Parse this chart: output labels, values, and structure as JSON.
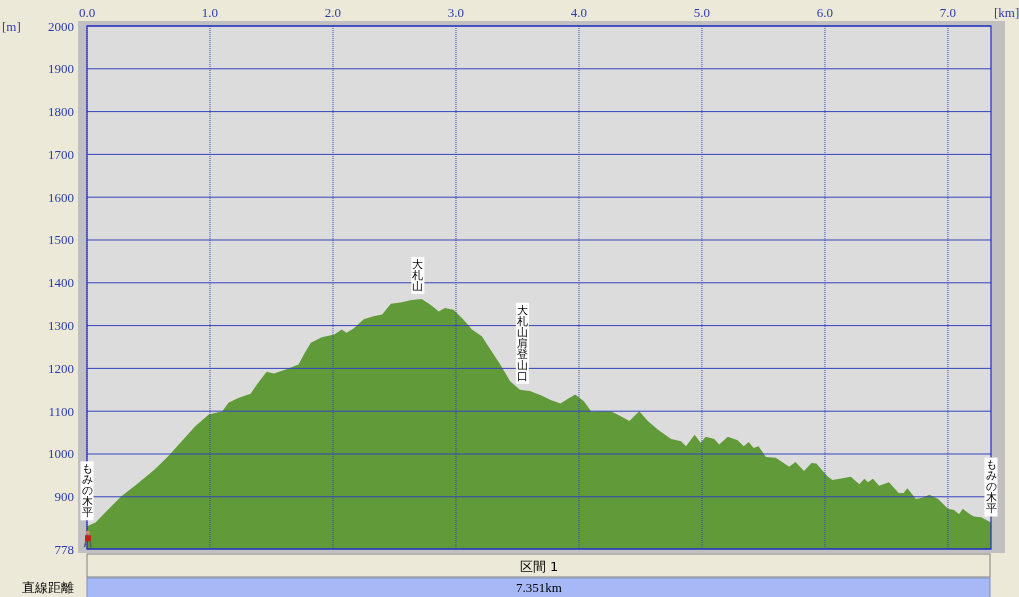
{
  "chart_data": {
    "type": "area",
    "xlabel": "[km]",
    "ylabel": "[m]",
    "x": [
      0,
      0.07,
      0.17,
      0.28,
      0.42,
      0.55,
      0.66,
      0.77,
      0.88,
      0.99,
      1.1,
      1.15,
      1.23,
      1.33,
      1.38,
      1.46,
      1.52,
      1.61,
      1.72,
      1.77,
      1.82,
      1.91,
      2.01,
      2.07,
      2.11,
      2.17,
      2.25,
      2.33,
      2.4,
      2.47,
      2.55,
      2.64,
      2.72,
      2.79,
      2.86,
      2.91,
      2.98,
      3.06,
      3.13,
      3.21,
      3.28,
      3.36,
      3.44,
      3.52,
      3.6,
      3.69,
      3.77,
      3.85,
      3.92,
      3.97,
      4.04,
      4.1,
      4.15,
      4.26,
      4.34,
      4.41,
      4.49,
      4.56,
      4.64,
      4.75,
      4.83,
      4.87,
      4.94,
      4.99,
      5.03,
      5.1,
      5.14,
      5.21,
      5.29,
      5.34,
      5.38,
      5.42,
      5.46,
      5.52,
      5.6,
      5.71,
      5.76,
      5.83,
      5.89,
      5.93,
      6.02,
      6.06,
      6.12,
      6.21,
      6.28,
      6.32,
      6.35,
      6.39,
      6.44,
      6.52,
      6.6,
      6.64,
      6.67,
      6.74,
      6.79,
      6.85,
      6.92,
      7.0,
      7.05,
      7.09,
      7.12,
      7.17,
      7.21,
      7.27,
      7.35
    ],
    "series": [
      {
        "color": "#619a38",
        "values": [
          831,
          840,
          870,
          901,
          933,
          964,
          995,
          1030,
          1065,
          1092,
          1100,
          1120,
          1131,
          1141,
          1162,
          1192,
          1188,
          1197,
          1209,
          1236,
          1260,
          1273,
          1279,
          1291,
          1283,
          1294,
          1315,
          1322,
          1326,
          1351,
          1354,
          1360,
          1362,
          1349,
          1333,
          1341,
          1337,
          1314,
          1291,
          1275,
          1244,
          1209,
          1170,
          1150,
          1147,
          1137,
          1126,
          1118,
          1131,
          1139,
          1123,
          1099,
          1100,
          1100,
          1088,
          1077,
          1100,
          1077,
          1057,
          1035,
          1030,
          1018,
          1045,
          1026,
          1040,
          1035,
          1022,
          1040,
          1032,
          1018,
          1028,
          1014,
          1018,
          993,
          991,
          970,
          981,
          960,
          979,
          978,
          948,
          939,
          942,
          947,
          929,
          942,
          934,
          942,
          926,
          934,
          909,
          909,
          920,
          895,
          898,
          905,
          895,
          872,
          869,
          859,
          872,
          861,
          854,
          852,
          840
        ]
      }
    ],
    "xlim": [
      0,
      7.35
    ],
    "ylim": [
      778,
      2000
    ],
    "xticks": [
      {
        "value": 0,
        "label": "0.0"
      },
      {
        "value": 1,
        "label": "1.0"
      },
      {
        "value": 2,
        "label": "2.0"
      },
      {
        "value": 3,
        "label": "3.0"
      },
      {
        "value": 4,
        "label": "4.0"
      },
      {
        "value": 5,
        "label": "5.0"
      },
      {
        "value": 6,
        "label": "6.0"
      },
      {
        "value": 7,
        "label": "7.0"
      }
    ],
    "yticks": [
      778,
      900,
      1000,
      1100,
      1200,
      1300,
      1400,
      1500,
      1600,
      1700,
      1800,
      1900,
      2000
    ],
    "grid": true,
    "annotations": [
      {
        "text": "もみの木平",
        "x": 0,
        "y": 831
      },
      {
        "text": "大札山",
        "x": 2.69,
        "y": 1360
      },
      {
        "text": "大札山肩登山口",
        "x": 3.54,
        "y": 1150
      },
      {
        "text": "もみの木平",
        "x": 7.35,
        "y": 840
      },
      "区間 1",
      "直線距離",
      "7.351km"
    ]
  }
}
